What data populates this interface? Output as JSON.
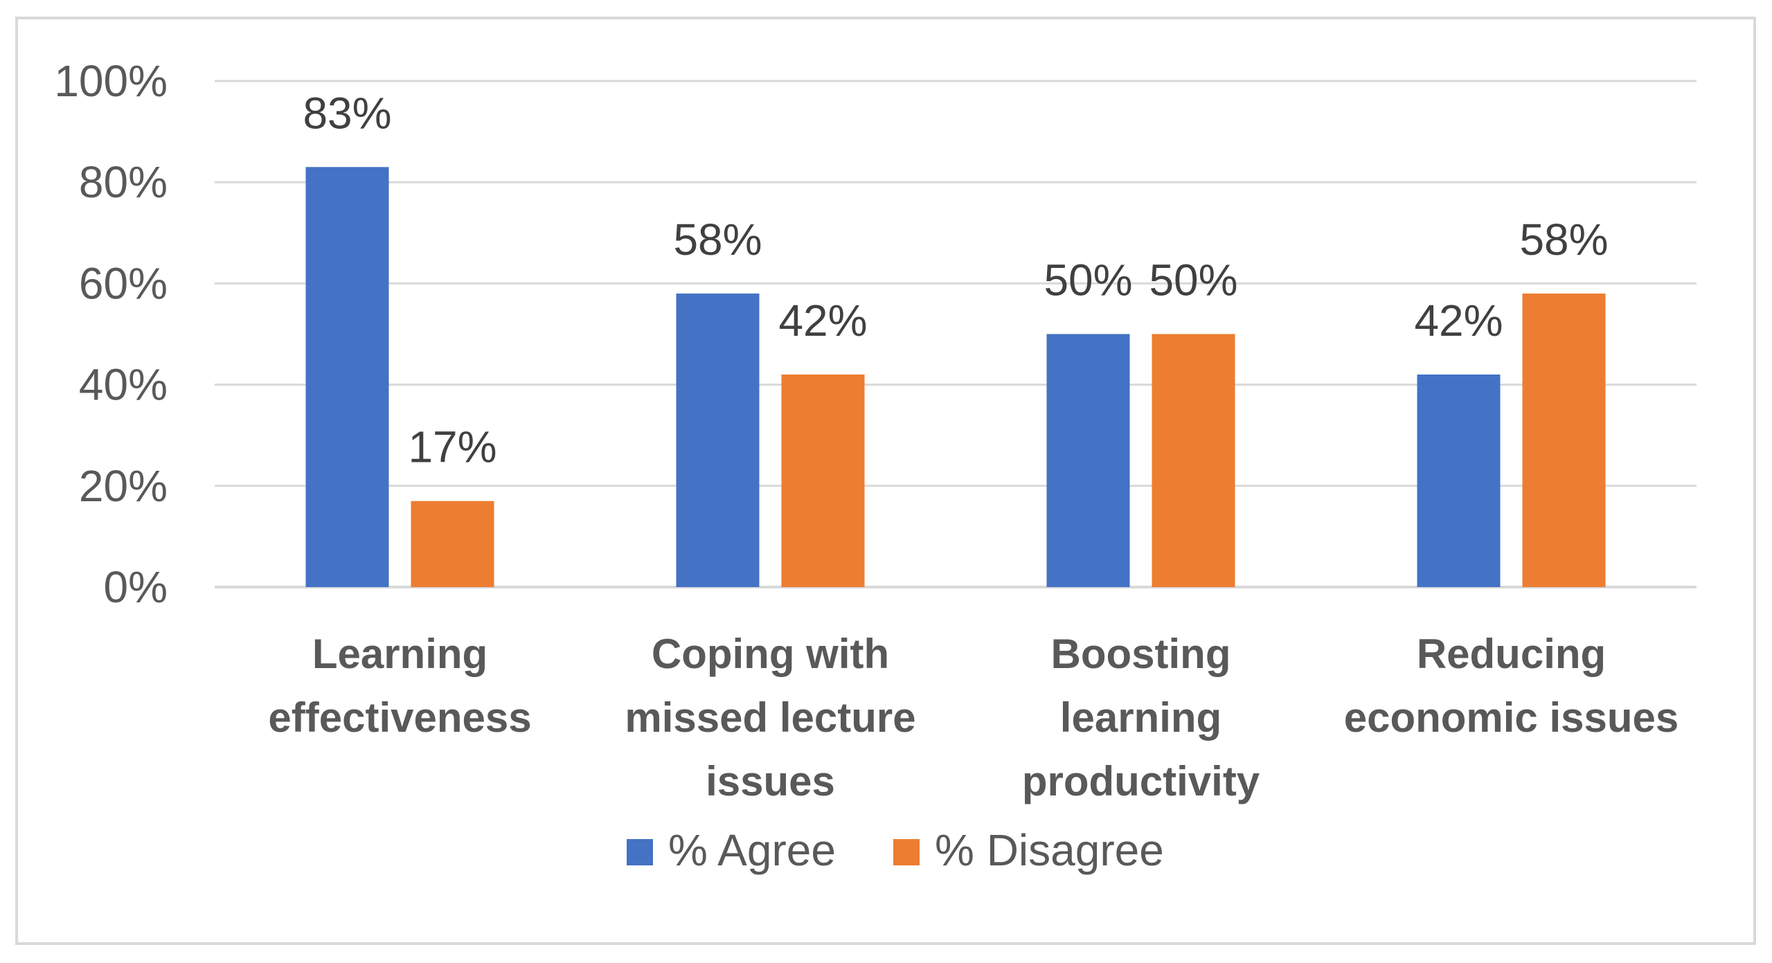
{
  "chart_data": {
    "type": "bar",
    "title": "",
    "xlabel": "",
    "ylabel": "",
    "ylim": [
      0,
      100
    ],
    "yticks": [
      0,
      20,
      40,
      60,
      80,
      100
    ],
    "ytick_labels": [
      "0%",
      "20%",
      "40%",
      "60%",
      "80%",
      "100%"
    ],
    "grid": true,
    "legend_position": "bottom",
    "categories": [
      [
        "Learning",
        "effectiveness"
      ],
      [
        "Coping with",
        "missed lecture",
        "issues"
      ],
      [
        "Boosting",
        "learning",
        "productivity"
      ],
      [
        "Reducing",
        "economic issues"
      ]
    ],
    "series": [
      {
        "name": "% Agree",
        "color": "#4472c4",
        "values": [
          83,
          58,
          50,
          42
        ],
        "labels": [
          "83%",
          "58%",
          "50%",
          "42%"
        ]
      },
      {
        "name": "% Disagree",
        "color": "#ed7d31",
        "values": [
          17,
          42,
          50,
          58
        ],
        "labels": [
          "17%",
          "42%",
          "50%",
          "58%"
        ]
      }
    ]
  }
}
